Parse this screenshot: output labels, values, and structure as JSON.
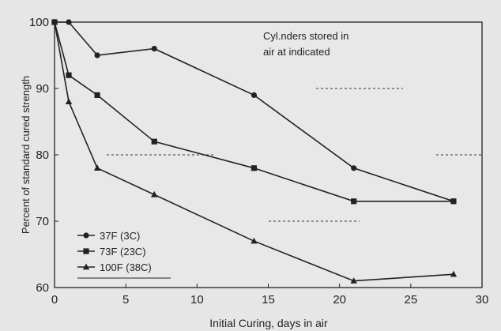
{
  "chart_data": {
    "type": "line",
    "xlabel": "Initial Curing, days in air",
    "ylabel": "Percent of standard cured strength",
    "xlim": [
      0,
      30
    ],
    "ylim": [
      60,
      100
    ],
    "xticks": [
      "0",
      "5",
      "10",
      "15",
      "20",
      "25",
      "30"
    ],
    "yticks": [
      "60",
      "70",
      "80",
      "90",
      "100"
    ],
    "annotation_lines": [
      "Cyl.nders stored in",
      "air at indicated"
    ],
    "legend_position": "bottom-left",
    "grid": "partial dashed",
    "series": [
      {
        "name": "37F (3C)",
        "marker": "circle",
        "color": "#222222",
        "x": [
          0,
          1,
          3,
          7,
          14,
          21,
          28
        ],
        "y": [
          100,
          100,
          95,
          96,
          89,
          78,
          73
        ]
      },
      {
        "name": "73F (23C)",
        "marker": "square",
        "color": "#222222",
        "x": [
          0,
          1,
          3,
          7,
          14,
          21,
          28
        ],
        "y": [
          100,
          92,
          89,
          82,
          78,
          73,
          73
        ]
      },
      {
        "name": "100F (38C)",
        "marker": "triangle",
        "color": "#222222",
        "x": [
          0,
          1,
          3,
          7,
          14,
          21,
          28
        ],
        "y": [
          100,
          88,
          78,
          74,
          67,
          61,
          62
        ]
      }
    ]
  }
}
